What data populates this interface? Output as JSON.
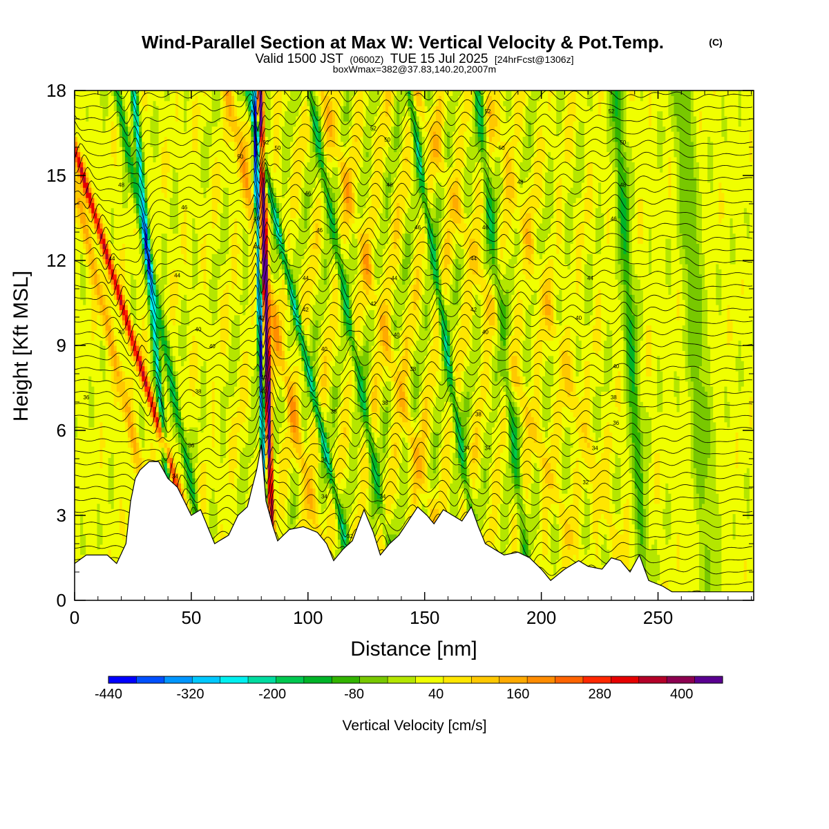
{
  "title": {
    "main": "Wind-Parallel Section at Max W: Vertical Velocity & Pot.Temp.",
    "copyright": "(C)",
    "line2_a": "Valid 1500 JST",
    "line2_b": "(0600Z)",
    "line2_c": "TUE 15 Jul 2025",
    "line2_d": "[24hrFcst@1306z]",
    "line3": "boxWmax=382@37.83,140.20,2007m"
  },
  "chart_data": {
    "type": "heatmap",
    "xlabel": "Distance [nm]",
    "ylabel": "Height [Kft MSL]",
    "xlim": [
      0,
      291
    ],
    "ylim": [
      0,
      18
    ],
    "x_ticks": [
      0,
      50,
      100,
      150,
      200,
      250
    ],
    "y_ticks": [
      0,
      3,
      6,
      9,
      12,
      15,
      18
    ],
    "grid": false,
    "colorbar": {
      "label": "Vertical Velocity [cm/s]",
      "min": -440,
      "max": 460,
      "step": 40,
      "tick_labels": [
        "-440",
        "-320",
        "-200",
        "-80",
        "40",
        "160",
        "280",
        "400"
      ],
      "tick_values": [
        -440,
        -320,
        -200,
        -80,
        40,
        160,
        280,
        400
      ],
      "colors": [
        "#0000ff",
        "#0050ff",
        "#0096ff",
        "#00c8ff",
        "#00f0f0",
        "#00dca0",
        "#00c850",
        "#00b428",
        "#32b400",
        "#78c800",
        "#b4e600",
        "#f0ff00",
        "#ffe600",
        "#ffc800",
        "#ffaa00",
        "#ff8c00",
        "#ff6400",
        "#ff2800",
        "#e60000",
        "#b40028",
        "#8c0050",
        "#5a0090"
      ]
    },
    "contour_field": "Potential Temperature",
    "contour_labels": [
      "32",
      "34",
      "36",
      "38",
      "40",
      "42",
      "44",
      "46",
      "48",
      "50",
      "52"
    ],
    "terrain": [
      [
        0,
        1.3
      ],
      [
        5,
        1.6
      ],
      [
        14,
        1.6
      ],
      [
        18,
        1.3
      ],
      [
        22,
        2.0
      ],
      [
        24,
        3.5
      ],
      [
        26,
        4.3
      ],
      [
        28,
        4.6
      ],
      [
        32,
        4.9
      ],
      [
        36,
        4.9
      ],
      [
        40,
        4.3
      ],
      [
        44,
        4.0
      ],
      [
        47,
        3.5
      ],
      [
        50,
        3.0
      ],
      [
        54,
        3.2
      ],
      [
        57,
        2.6
      ],
      [
        60,
        2.0
      ],
      [
        66,
        2.3
      ],
      [
        70,
        3.0
      ],
      [
        74,
        3.3
      ],
      [
        78,
        4.6
      ],
      [
        80,
        5.5
      ],
      [
        82,
        3.5
      ],
      [
        85,
        2.6
      ],
      [
        87,
        2.1
      ],
      [
        92,
        2.5
      ],
      [
        98,
        2.6
      ],
      [
        104,
        2.4
      ],
      [
        108,
        2.0
      ],
      [
        111,
        1.4
      ],
      [
        115,
        1.8
      ],
      [
        119,
        2.1
      ],
      [
        124,
        3.2
      ],
      [
        128,
        2.4
      ],
      [
        131,
        1.6
      ],
      [
        135,
        2.0
      ],
      [
        139,
        2.3
      ],
      [
        143,
        2.8
      ],
      [
        147,
        3.3
      ],
      [
        151,
        3.0
      ],
      [
        154,
        2.7
      ],
      [
        158,
        3.2
      ],
      [
        162,
        3.0
      ],
      [
        166,
        2.8
      ],
      [
        170,
        3.3
      ],
      [
        173,
        2.6
      ],
      [
        176,
        2.0
      ],
      [
        180,
        1.8
      ],
      [
        184,
        1.6
      ],
      [
        190,
        1.7
      ],
      [
        195,
        1.5
      ],
      [
        200,
        1.1
      ],
      [
        204,
        0.7
      ],
      [
        210,
        1.1
      ],
      [
        216,
        1.4
      ],
      [
        220,
        1.2
      ],
      [
        226,
        1.1
      ],
      [
        230,
        1.5
      ],
      [
        234,
        1.4
      ],
      [
        238,
        1.0
      ],
      [
        242,
        1.6
      ],
      [
        246,
        0.7
      ],
      [
        252,
        0.5
      ],
      [
        256,
        0.3
      ],
      [
        291,
        0.3
      ]
    ],
    "updrafts": [
      {
        "x": 44,
        "slope": -10.5,
        "amp": 300,
        "width": 1.6
      },
      {
        "x": 84,
        "slope": -0.9,
        "amp": 450,
        "width": 1.2
      },
      {
        "x": 30,
        "slope": -8.0,
        "amp": 110,
        "width": 2.2
      },
      {
        "x": 100,
        "slope": -7.0,
        "amp": 120,
        "width": 2.4
      },
      {
        "x": 150,
        "slope": -9.0,
        "amp": 90,
        "width": 2.6
      },
      {
        "x": 205,
        "slope": -12.0,
        "amp": 70,
        "width": 3.0
      },
      {
        "x": 225,
        "slope": -10.0,
        "amp": 60,
        "width": 3.2
      }
    ],
    "downdrafts": [
      {
        "x": 40,
        "slope": -3.0,
        "amp": -260,
        "width": 1.4
      },
      {
        "x": 81,
        "slope": -0.8,
        "amp": -420,
        "width": 1.0
      },
      {
        "x": 50,
        "slope": -6.5,
        "amp": -170,
        "width": 1.8
      },
      {
        "x": 111,
        "slope": -7.5,
        "amp": -220,
        "width": 1.6
      },
      {
        "x": 130,
        "slope": -6.0,
        "amp": -160,
        "width": 1.8
      },
      {
        "x": 168,
        "slope": -5.0,
        "amp": -180,
        "width": 1.6
      },
      {
        "x": 190,
        "slope": -3.5,
        "amp": -140,
        "width": 2.0
      },
      {
        "x": 242,
        "slope": -2.0,
        "amp": -150,
        "width": 2.4
      },
      {
        "x": 270,
        "slope": -2.0,
        "amp": -90,
        "width": 4.0
      }
    ]
  }
}
